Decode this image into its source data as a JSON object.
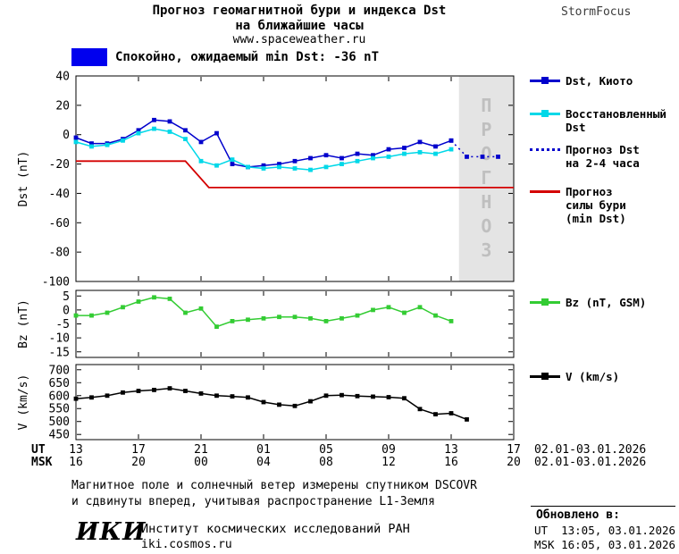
{
  "header": {
    "title_line1": "Прогноз геомагнитной бури и индекса Dst",
    "title_line2": "на ближайшие часы",
    "url": "www.spaceweather.ru",
    "brand": "StormFocus"
  },
  "status": {
    "swatch_color": "#0000ee",
    "label": "Спокойно, ожидаемый min Dst: -36 nT"
  },
  "legend": {
    "dst_kyoto": "Dst, Киото",
    "dst_restored": "Восстановленный\nDst",
    "dst_forecast": "Прогноз Dst\nна 2-4 часа",
    "storm_forecast": "Прогноз\nсилы бури\n(min Dst)",
    "bz": "Bz (nT, GSM)",
    "v": "V (km/s)"
  },
  "x_axis": {
    "ut_label": "UT",
    "msk_label": "MSK",
    "ut_ticks": [
      "13",
      "17",
      "21",
      "01",
      "05",
      "09",
      "13",
      "17"
    ],
    "msk_ticks": [
      "16",
      "20",
      "00",
      "04",
      "08",
      "12",
      "16",
      "20"
    ],
    "ut_date": "02.01-03.01.2026",
    "msk_date": "02.01-03.01.2026"
  },
  "chart_data": [
    {
      "type": "line",
      "ylabel": "Dst (nT)",
      "ylim": [
        -100,
        40
      ],
      "yticks": [
        40,
        20,
        0,
        -20,
        -40,
        -60,
        -80,
        -100
      ],
      "xlim": [
        0,
        28
      ],
      "xticks": [
        0,
        4,
        8,
        12,
        16,
        20,
        24,
        28
      ],
      "forecast_region": {
        "x_start": 24.5,
        "x_end": 28,
        "label": "ПРОГНОЗ",
        "fill": "#e4e4e4",
        "label_color": "#bfbfbf"
      },
      "series": [
        {
          "name": "Dst, Киото",
          "color": "#0000cc",
          "marker": true,
          "dash": "",
          "x": [
            0,
            1,
            2,
            3,
            4,
            5,
            6,
            7,
            8,
            9,
            10,
            11,
            12,
            13,
            14,
            15,
            16,
            17,
            18,
            19,
            20,
            21,
            22,
            23,
            24
          ],
          "y": [
            -2,
            -6,
            -6,
            -3,
            3,
            10,
            9,
            3,
            -5,
            1,
            -20,
            -22,
            -21,
            -20,
            -18,
            -16,
            -14,
            -16,
            -13,
            -14,
            -10,
            -9,
            -5,
            -8,
            -4
          ]
        },
        {
          "name": "Восстановленный Dst",
          "color": "#00d8e8",
          "marker": true,
          "dash": "",
          "x": [
            0,
            1,
            2,
            3,
            4,
            5,
            6,
            7,
            8,
            9,
            10,
            11,
            12,
            13,
            14,
            15,
            16,
            17,
            18,
            19,
            20,
            21,
            22,
            23,
            24
          ],
          "y": [
            -5,
            -8,
            -7,
            -4,
            1,
            4,
            2,
            -3,
            -18,
            -21,
            -17,
            -22,
            -23,
            -22,
            -23,
            -24,
            -22,
            -20,
            -18,
            -16,
            -15,
            -13,
            -12,
            -13,
            -10
          ]
        },
        {
          "name": "Прогноз Dst на 2-4 часа",
          "color": "#0000cc",
          "marker": true,
          "dash": "2,4",
          "x": [
            24,
            25,
            26,
            27
          ],
          "y": [
            -4,
            -15,
            -15,
            -15
          ]
        },
        {
          "name": "Прогноз силы бури (min Dst)",
          "color": "#d40000",
          "marker": false,
          "dash": "",
          "width": 1.8,
          "x": [
            0,
            7,
            8.5,
            28
          ],
          "y": [
            -18,
            -18,
            -36,
            -36
          ]
        }
      ]
    },
    {
      "type": "line",
      "ylabel": "Bz (nT)",
      "ylim": [
        -17,
        7
      ],
      "yticks": [
        5,
        0,
        -5,
        -10,
        -15
      ],
      "xlim": [
        0,
        28
      ],
      "xticks": [
        0,
        4,
        8,
        12,
        16,
        20,
        24,
        28
      ],
      "series": [
        {
          "name": "Bz (nT, GSM)",
          "color": "#33cc33",
          "marker": true,
          "dash": "",
          "x": [
            0,
            1,
            2,
            3,
            4,
            5,
            6,
            7,
            8,
            9,
            10,
            11,
            12,
            13,
            14,
            15,
            16,
            17,
            18,
            19,
            20,
            21,
            22,
            23,
            24
          ],
          "y": [
            -2,
            -2,
            -1,
            1,
            3,
            4.5,
            4,
            -1,
            0.5,
            -6,
            -4,
            -3.5,
            -3,
            -2.5,
            -2.5,
            -3,
            -4,
            -3,
            -2,
            0,
            1,
            -1,
            1,
            -2,
            -4
          ]
        }
      ]
    },
    {
      "type": "line",
      "ylabel": "V (km/s)",
      "ylim": [
        430,
        720
      ],
      "yticks": [
        700,
        650,
        600,
        550,
        500,
        450
      ],
      "xlim": [
        0,
        28
      ],
      "xticks": [
        0,
        4,
        8,
        12,
        16,
        20,
        24,
        28
      ],
      "series": [
        {
          "name": "V (km/s)",
          "color": "#000000",
          "marker": true,
          "dash": "",
          "x": [
            0,
            1,
            2,
            3,
            4,
            5,
            6,
            7,
            8,
            9,
            10,
            11,
            12,
            13,
            14,
            15,
            16,
            17,
            18,
            19,
            20,
            21,
            22,
            23,
            24,
            25
          ],
          "y": [
            588,
            593,
            600,
            612,
            618,
            622,
            628,
            618,
            608,
            600,
            597,
            593,
            575,
            565,
            560,
            578,
            600,
            602,
            598,
            596,
            594,
            590,
            548,
            528,
            532,
            508
          ]
        }
      ]
    }
  ],
  "footer": {
    "note_line1": "Магнитное поле и солнечный ветер измерены спутником DSCOVR",
    "note_line2": "и сдвинуты вперед, учитывая распространение L1-Земля",
    "iki_logo": "ИКИ",
    "institute": "Институт космических исследований РАН",
    "iki_url": "iki.cosmos.ru"
  },
  "updated": {
    "label": "Обновлено в:",
    "ut": "UT  13:05, 03.01.2026",
    "msk": "MSK 16:05, 03.01.2026"
  }
}
